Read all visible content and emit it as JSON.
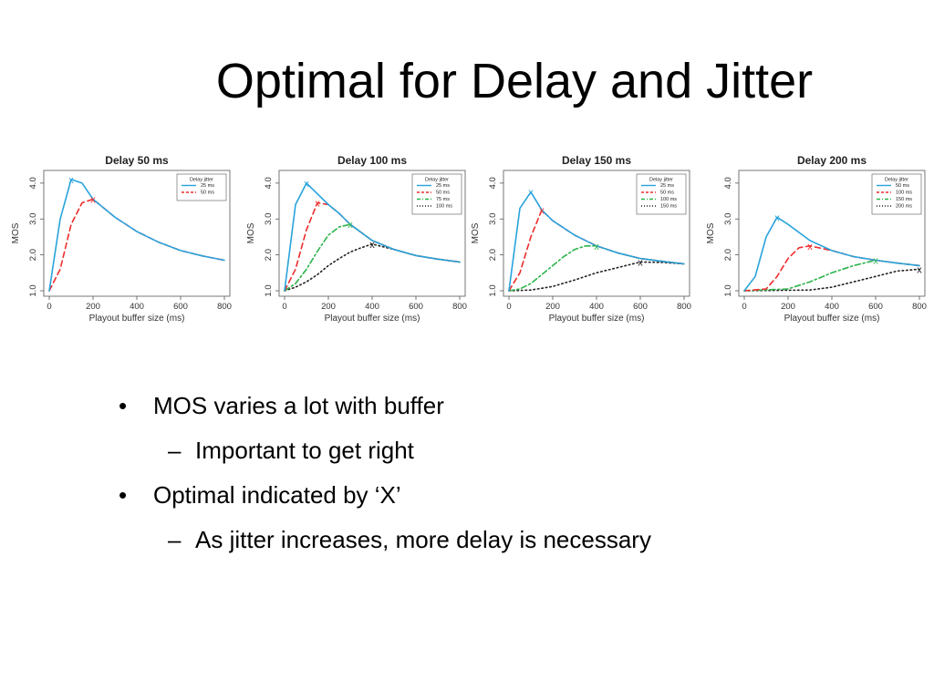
{
  "slide": {
    "title": "Optimal for Delay and Jitter",
    "bullets": [
      {
        "text": "MOS varies a lot with buffer",
        "sub": "Important to get right"
      },
      {
        "text": "Optimal indicated by ‘X’",
        "sub": "As jitter increases, more delay is necessary"
      }
    ],
    "bullet_glyph": "•",
    "sub_glyph": "–"
  },
  "series_colors": [
    "#29a3dc",
    "#ee2c2c",
    "#2cb34a",
    "#222222"
  ],
  "chart_data": [
    {
      "type": "line",
      "title": "Delay 50 ms",
      "xlabel": "Playout buffer size (ms)",
      "ylabel": "MOS",
      "xlim": [
        0,
        800
      ],
      "ylim": [
        1.0,
        4.2
      ],
      "xticks": [
        0,
        200,
        400,
        600,
        800
      ],
      "yticks": [
        1.0,
        2.0,
        3.0,
        4.0
      ],
      "xtick_labels": [
        "0",
        "200",
        "400",
        "600",
        "800"
      ],
      "ytick_labels": [
        "1.0",
        "2.0",
        "3.0",
        "4.0"
      ],
      "legend_title": "Delay jitter",
      "legend_position": "top-right",
      "series": [
        {
          "name": "25 ms",
          "x": [
            0,
            50,
            100,
            150,
            200,
            300,
            400,
            500,
            600,
            700,
            800
          ],
          "y": [
            1.0,
            3.0,
            4.1,
            4.0,
            3.55,
            3.05,
            2.65,
            2.35,
            2.12,
            1.97,
            1.85
          ],
          "optimal": [
            100,
            4.1
          ]
        },
        {
          "name": "50 ms",
          "x": [
            0,
            50,
            100,
            150,
            200,
            300,
            400,
            500,
            600,
            700,
            800
          ],
          "y": [
            1.0,
            1.6,
            2.85,
            3.45,
            3.55,
            3.05,
            2.65,
            2.35,
            2.12,
            1.97,
            1.85
          ],
          "optimal": [
            200,
            3.55
          ]
        }
      ]
    },
    {
      "type": "line",
      "title": "Delay 100 ms",
      "xlabel": "Playout buffer size (ms)",
      "ylabel": "MOS",
      "xlim": [
        0,
        800
      ],
      "ylim": [
        1.0,
        4.2
      ],
      "xticks": [
        0,
        200,
        400,
        600,
        800
      ],
      "yticks": [
        1.0,
        2.0,
        3.0,
        4.0
      ],
      "xtick_labels": [
        "0",
        "200",
        "400",
        "600",
        "800"
      ],
      "ytick_labels": [
        "1.0",
        "2.0",
        "3.0",
        "4.0"
      ],
      "legend_title": "Delay jitter",
      "legend_position": "top-right",
      "series": [
        {
          "name": "25 ms",
          "x": [
            0,
            50,
            100,
            150,
            200,
            250,
            300,
            400,
            500,
            600,
            700,
            800
          ],
          "y": [
            1.0,
            3.4,
            4.0,
            3.7,
            3.4,
            3.15,
            2.85,
            2.4,
            2.15,
            1.98,
            1.88,
            1.8
          ],
          "optimal": [
            100,
            4.0
          ]
        },
        {
          "name": "50 ms",
          "x": [
            0,
            50,
            100,
            150,
            200,
            250,
            300,
            400,
            500,
            600,
            700,
            800
          ],
          "y": [
            1.0,
            1.6,
            2.7,
            3.45,
            3.4,
            3.15,
            2.85,
            2.4,
            2.15,
            1.98,
            1.88,
            1.8
          ],
          "optimal": [
            150,
            3.45
          ]
        },
        {
          "name": "75 ms",
          "x": [
            0,
            50,
            100,
            150,
            200,
            250,
            300,
            400,
            500,
            600,
            700,
            800
          ],
          "y": [
            1.0,
            1.2,
            1.6,
            2.1,
            2.55,
            2.78,
            2.85,
            2.4,
            2.15,
            1.98,
            1.88,
            1.8
          ],
          "optimal": [
            300,
            2.85
          ]
        },
        {
          "name": "100 ms",
          "x": [
            0,
            50,
            100,
            150,
            200,
            250,
            300,
            350,
            400,
            500,
            600,
            700,
            800
          ],
          "y": [
            1.0,
            1.1,
            1.25,
            1.45,
            1.7,
            1.9,
            2.08,
            2.2,
            2.3,
            2.15,
            1.98,
            1.88,
            1.8
          ],
          "optimal": [
            400,
            2.3
          ]
        }
      ]
    },
    {
      "type": "line",
      "title": "Delay 150 ms",
      "xlabel": "Playout buffer size (ms)",
      "ylabel": "MOS",
      "xlim": [
        0,
        800
      ],
      "ylim": [
        1.0,
        4.2
      ],
      "xticks": [
        0,
        200,
        400,
        600,
        800
      ],
      "yticks": [
        1.0,
        2.0,
        3.0,
        4.0
      ],
      "xtick_labels": [
        "0",
        "200",
        "400",
        "600",
        "800"
      ],
      "ytick_labels": [
        "1.0",
        "2.0",
        "3.0",
        "4.0"
      ],
      "legend_title": "Delay jitter",
      "legend_position": "top-right",
      "series": [
        {
          "name": "25 ms",
          "x": [
            0,
            50,
            100,
            150,
            200,
            300,
            400,
            500,
            600,
            700,
            800
          ],
          "y": [
            1.0,
            3.3,
            3.75,
            3.25,
            2.95,
            2.55,
            2.25,
            2.05,
            1.9,
            1.82,
            1.75
          ],
          "optimal": [
            100,
            3.75
          ]
        },
        {
          "name": "50 ms",
          "x": [
            0,
            50,
            100,
            150,
            200,
            300,
            400,
            500,
            600,
            700,
            800
          ],
          "y": [
            1.0,
            1.5,
            2.5,
            3.25,
            2.95,
            2.55,
            2.25,
            2.05,
            1.9,
            1.82,
            1.75
          ],
          "optimal": [
            150,
            3.25
          ]
        },
        {
          "name": "100 ms",
          "x": [
            0,
            50,
            100,
            150,
            200,
            250,
            300,
            350,
            400,
            500,
            600,
            700,
            800
          ],
          "y": [
            1.0,
            1.05,
            1.2,
            1.45,
            1.7,
            1.95,
            2.15,
            2.25,
            2.25,
            2.05,
            1.9,
            1.82,
            1.75
          ],
          "optimal": [
            400,
            2.25
          ]
        },
        {
          "name": "150 ms",
          "x": [
            0,
            100,
            200,
            300,
            400,
            500,
            600,
            700,
            800
          ],
          "y": [
            1.0,
            1.02,
            1.12,
            1.3,
            1.5,
            1.65,
            1.8,
            1.79,
            1.75
          ],
          "optimal": [
            600,
            1.8
          ]
        }
      ]
    },
    {
      "type": "line",
      "title": "Delay 200 ms",
      "xlabel": "Playout buffer size (ms)",
      "ylabel": "MOS",
      "xlim": [
        0,
        800
      ],
      "ylim": [
        1.0,
        4.2
      ],
      "xticks": [
        0,
        200,
        400,
        600,
        800
      ],
      "yticks": [
        1.0,
        2.0,
        3.0,
        4.0
      ],
      "xtick_labels": [
        "0",
        "200",
        "400",
        "600",
        "800"
      ],
      "ytick_labels": [
        "1.0",
        "2.0",
        "3.0",
        "4.0"
      ],
      "legend_title": "Delay jitter",
      "legend_position": "top-right",
      "series": [
        {
          "name": "50 ms",
          "x": [
            0,
            50,
            100,
            150,
            200,
            300,
            400,
            500,
            600,
            700,
            800
          ],
          "y": [
            1.0,
            1.4,
            2.5,
            3.05,
            2.85,
            2.4,
            2.12,
            1.95,
            1.85,
            1.77,
            1.7
          ],
          "optimal": [
            150,
            3.05
          ]
        },
        {
          "name": "100 ms",
          "x": [
            0,
            100,
            150,
            200,
            250,
            300,
            400,
            500,
            600,
            700,
            800
          ],
          "y": [
            1.0,
            1.05,
            1.4,
            1.9,
            2.2,
            2.25,
            2.12,
            1.95,
            1.85,
            1.77,
            1.7
          ],
          "optimal": [
            300,
            2.25
          ]
        },
        {
          "name": "150 ms",
          "x": [
            0,
            200,
            300,
            400,
            500,
            600,
            700,
            800
          ],
          "y": [
            1.0,
            1.05,
            1.25,
            1.5,
            1.7,
            1.85,
            1.77,
            1.7
          ],
          "optimal": [
            600,
            1.85
          ]
        },
        {
          "name": "200 ms",
          "x": [
            0,
            300,
            400,
            500,
            600,
            700,
            800
          ],
          "y": [
            1.0,
            1.02,
            1.1,
            1.25,
            1.4,
            1.55,
            1.6
          ],
          "optimal": [
            800,
            1.6
          ]
        }
      ]
    }
  ]
}
